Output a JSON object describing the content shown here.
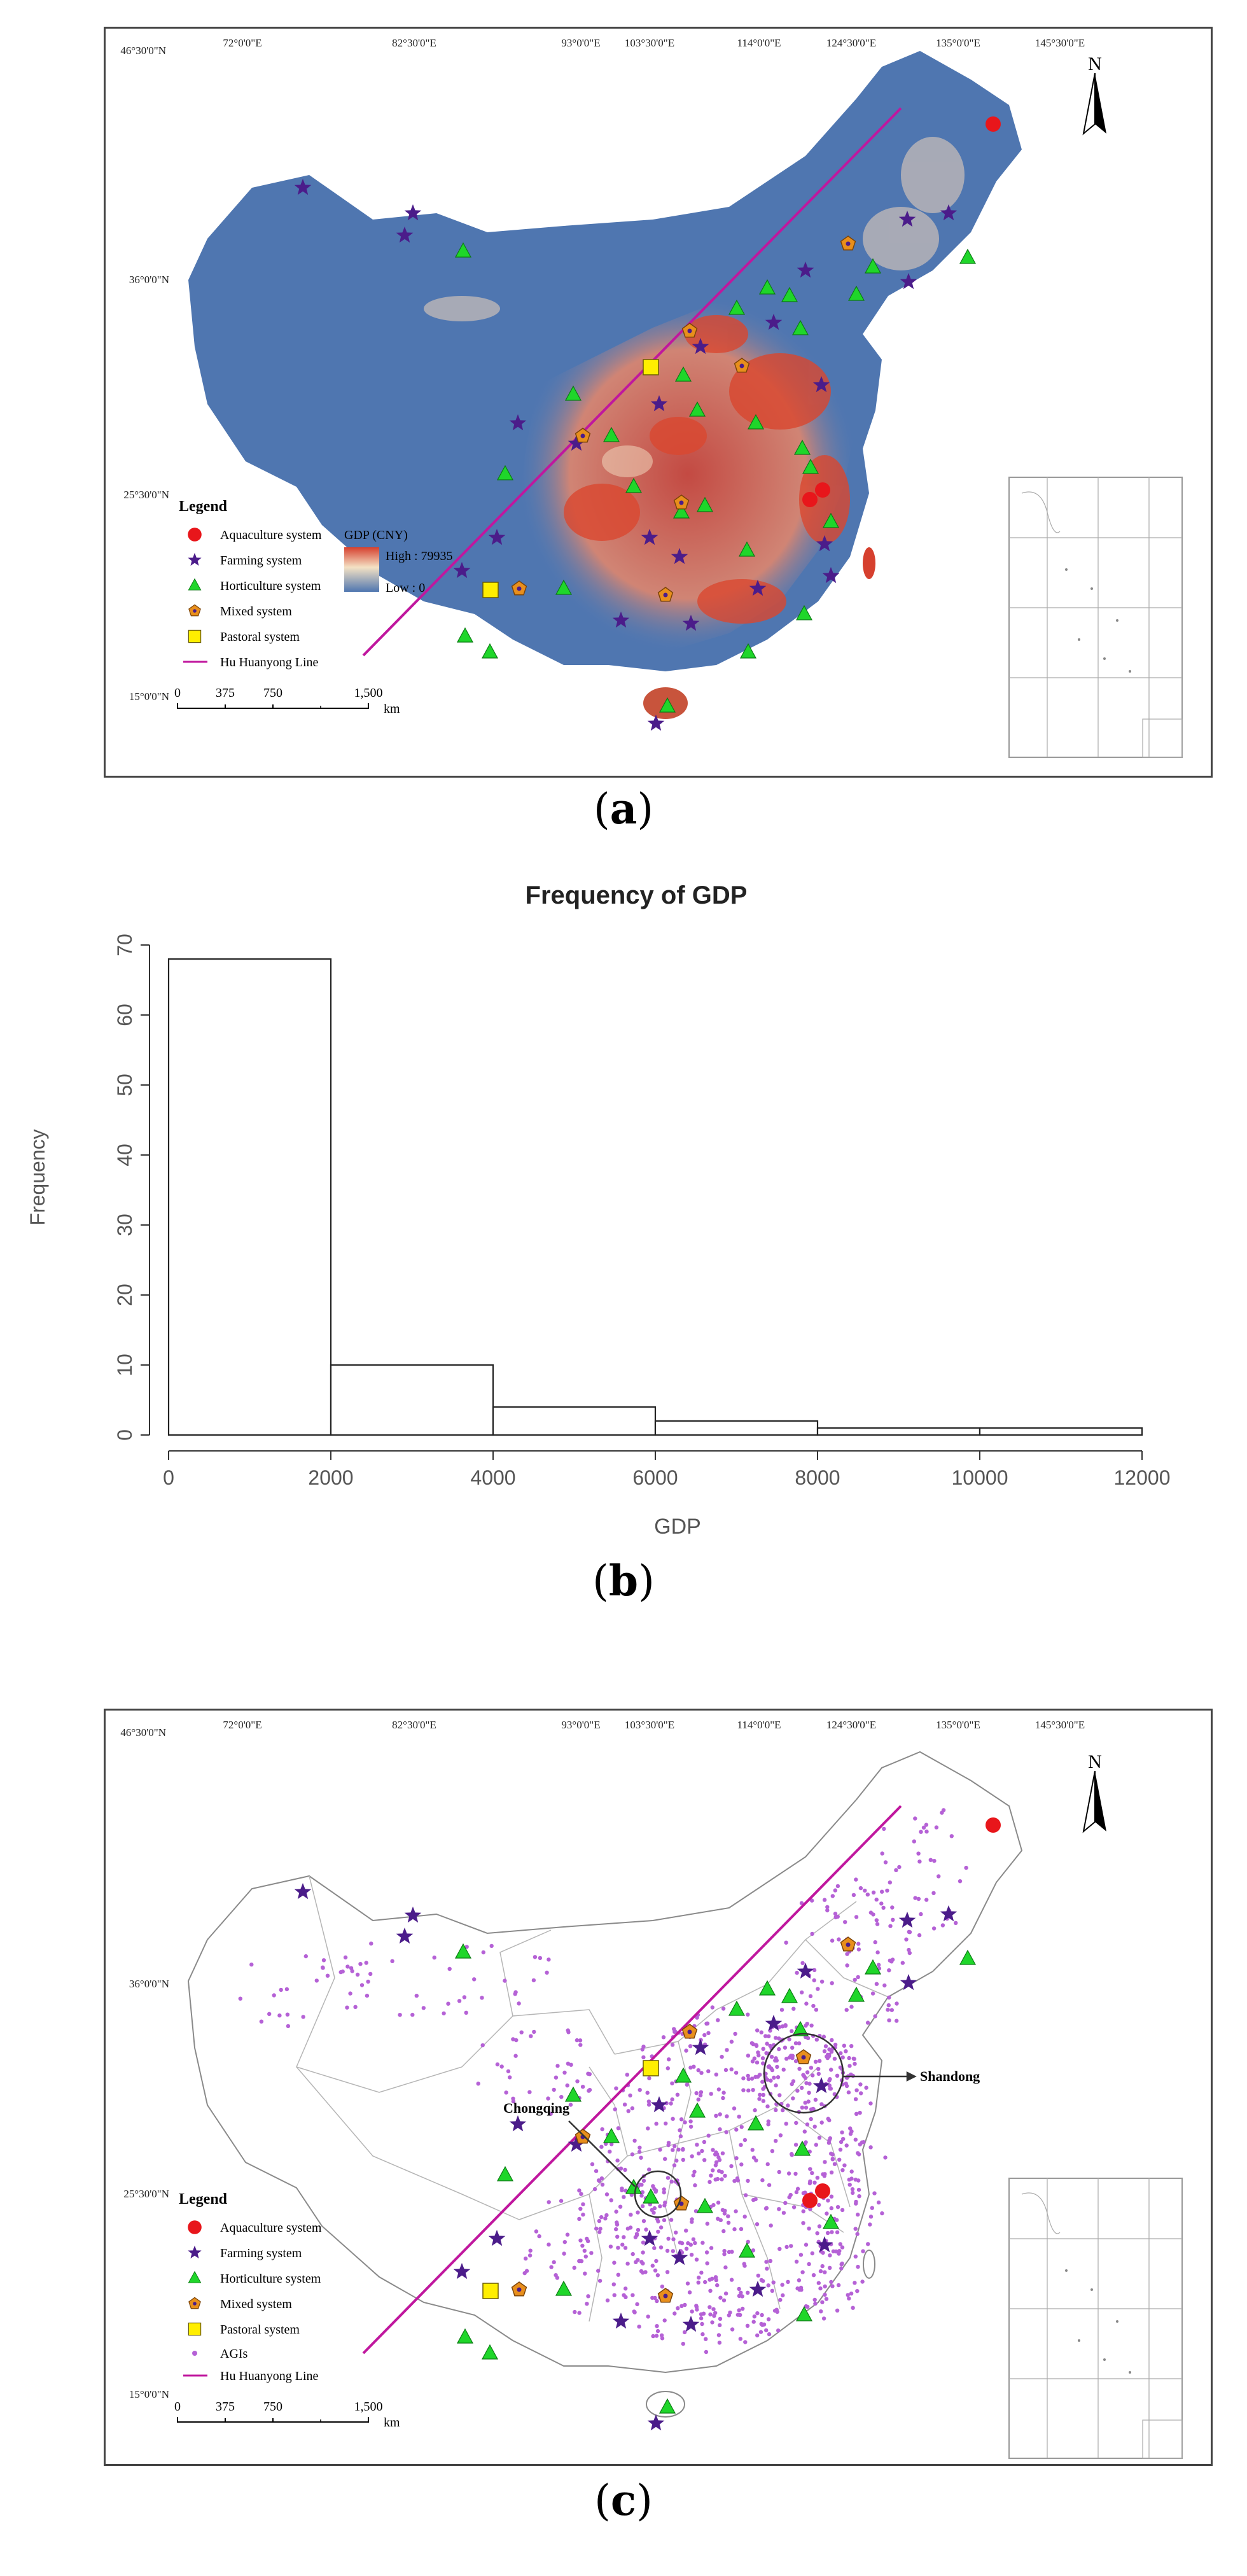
{
  "map_a": {
    "lat_labels": [
      "46°30'0\"N",
      "36°0'0\"N",
      "25°30'0\"N",
      "15°0'0\"N"
    ],
    "lon_labels": [
      "72°0'0\"E",
      "82°30'0\"E",
      "93°0'0\"E",
      "103°30'0\"E",
      "114°0'0\"E",
      "124°30'0\"E",
      "135°0'0\"E",
      "145°30'0\"E"
    ],
    "north": "N",
    "legend_title": "Legend",
    "legend_items": [
      "Aquaculture system",
      "Farming system",
      "Horticulture system",
      "Mixed system",
      "Pastoral system",
      "Hu Huanyong Line"
    ],
    "gdp_title": "GDP (CNY)",
    "gdp_high": "High : 79935",
    "gdp_low": "Low : 0",
    "scale_ticks": [
      "0",
      "375",
      "750",
      "1,500"
    ],
    "scale_unit": "km",
    "caption": "a",
    "colors": {
      "aquaculture": "#e8161b",
      "farming": "#4b1c8a",
      "horticulture": "#1fd62a",
      "mixed": "#e88f1c",
      "pastoral": "#ffee00",
      "hu_line": "#c0179e",
      "gdp_high": "#d6402e",
      "gdp_low": "#4f76b0"
    }
  },
  "histogram": {
    "caption": "b",
    "chart_data": {
      "type": "bar",
      "title": "Frequency of GDP",
      "xlabel": "GDP",
      "ylabel": "Frequency",
      "bin_edges": [
        0,
        2000,
        4000,
        6000,
        8000,
        10000,
        12000
      ],
      "values": [
        68,
        10,
        4,
        2,
        1,
        1
      ],
      "xticks": [
        "0",
        "2000",
        "4000",
        "6000",
        "8000",
        "10000",
        "12000"
      ],
      "yticks": [
        "0",
        "10",
        "20",
        "30",
        "40",
        "50",
        "60",
        "70"
      ],
      "xlim": [
        0,
        12000
      ],
      "ylim": [
        0,
        70
      ]
    }
  },
  "map_c": {
    "lat_labels": [
      "46°30'0\"N",
      "36°0'0\"N",
      "25°30'0\"N",
      "15°0'0\"N"
    ],
    "lon_labels": [
      "72°0'0\"E",
      "82°30'0\"E",
      "93°0'0\"E",
      "103°30'0\"E",
      "114°0'0\"E",
      "124°30'0\"E",
      "135°0'0\"E",
      "145°30'0\"E"
    ],
    "north": "N",
    "legend_title": "Legend",
    "legend_items": [
      "Aquaculture system",
      "Farming system",
      "Horticulture system",
      "Mixed system",
      "Pastoral system",
      "AGIs",
      "Hu Huanyong Line"
    ],
    "callouts": [
      "Chongqing",
      "Shandong"
    ],
    "scale_ticks": [
      "0",
      "375",
      "750",
      "1,500"
    ],
    "scale_unit": "km",
    "caption": "c",
    "colors": {
      "agi": "#b561d6"
    }
  }
}
